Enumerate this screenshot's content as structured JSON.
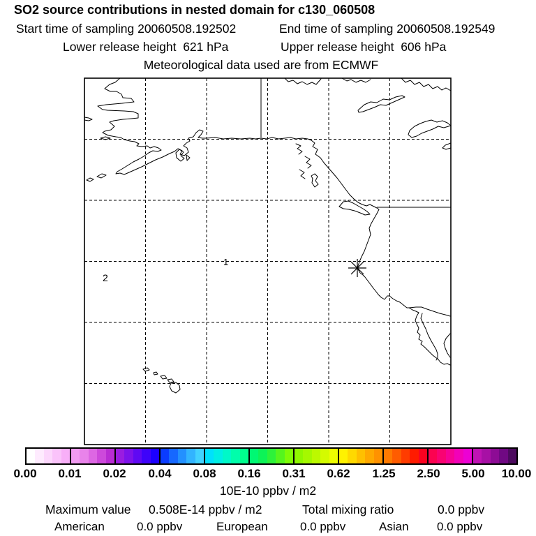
{
  "header": {
    "title": "SO2 source contributions in nested domain for c130_060508",
    "start_time": "Start time of sampling 20060508.192502",
    "end_time": "End time of sampling 20060508.192549",
    "lower_release": "Lower release height  621 hPa",
    "upper_release": "Upper release height  606 hPa",
    "met_data": "Meteorological data used are from ECMWF"
  },
  "map": {
    "labels": [
      {
        "text": "1"
      },
      {
        "text": "2"
      }
    ],
    "marker": "asterisk-sampling-location"
  },
  "colorbar": {
    "ticks": [
      "0.00",
      "0.01",
      "0.02",
      "0.04",
      "0.08",
      "0.16",
      "0.31",
      "0.62",
      "1.25",
      "2.50",
      "5.00",
      "10.00"
    ],
    "units": "10E-10 ppbv / m2",
    "segments": [
      [
        "#ffffff",
        "#feebfe",
        "#fcd7fc",
        "#fac3fa",
        "#f8aff8"
      ],
      [
        "#f19bf1",
        "#e983ea",
        "#dd67e3",
        "#cd49db",
        "#b92cd3"
      ],
      [
        "#9a1ce0",
        "#7d12ea",
        "#5f09f3",
        "#3e03fa",
        "#1c00ff"
      ],
      [
        "#0b3cff",
        "#1668ff",
        "#2390ff",
        "#32b4ff",
        "#42d2ff"
      ],
      [
        "#00e0fc",
        "#00eee4",
        "#00f8c8",
        "#00feab",
        "#00ff8e"
      ],
      [
        "#00f873",
        "#0df357",
        "#2df23a",
        "#55f51d",
        "#7efb06"
      ],
      [
        "#8ff700",
        "#a5f800",
        "#bcf900",
        "#d4fb00",
        "#eefd00"
      ],
      [
        "#fff200",
        "#ffd900",
        "#ffc000",
        "#ffa800",
        "#ff9200"
      ],
      [
        "#ff7a00",
        "#ff5c00",
        "#ff3c00",
        "#ff1b00",
        "#fb0220"
      ],
      [
        "#fb0350",
        "#f90372",
        "#f60295",
        "#f201b8",
        "#ec01d4"
      ],
      [
        "#c013b4",
        "#a710a5",
        "#8d0c95",
        "#700983",
        "#4d0a5f"
      ]
    ]
  },
  "footer": {
    "max_value_label": "Maximum value",
    "max_value": "0.508E-14 ppbv / m2",
    "total_label": "Total mixing ratio",
    "total_value": "0.0 ppbv",
    "sources": [
      {
        "name": "American",
        "value": "0.0 ppbv"
      },
      {
        "name": "European",
        "value": "0.0 ppbv"
      },
      {
        "name": "Asian",
        "value": "0.0 ppbv"
      }
    ]
  },
  "chart_data": {
    "type": "heatmap",
    "title": "SO2 source contributions in nested domain for c130_060508",
    "subtitle": [
      "Start time of sampling 20060508.192502",
      "End time of sampling 20060508.192549",
      "Lower release height 621 hPa",
      "Upper release height 606 hPa",
      "Meteorological data used are from ECMWF"
    ],
    "colorbar_ticks": [
      0.0,
      0.01,
      0.02,
      0.04,
      0.08,
      0.16,
      0.31,
      0.62,
      1.25,
      2.5,
      5.0,
      10.0
    ],
    "colorbar_units": "10E-10 ppbv / m2",
    "field_values": "no grid cell exceeds lowest contour; concentration field appears blank/zero on map",
    "maximum_value": "0.508E-14 ppbv / m2",
    "total_mixing_ratio_ppbv": 0.0,
    "source_contributions_ppbv": {
      "American": 0.0,
      "European": 0.0,
      "Asian": 0.0
    },
    "map_markers": [
      {
        "label": "1",
        "note": "numbered location on map"
      },
      {
        "label": "2",
        "note": "numbered location on map"
      },
      {
        "symbol": "asterisk",
        "note": "sampling location off California coast"
      }
    ],
    "legend_position": "bottom",
    "grid": "dashed lat/lon graticule, 6x6 cells"
  }
}
